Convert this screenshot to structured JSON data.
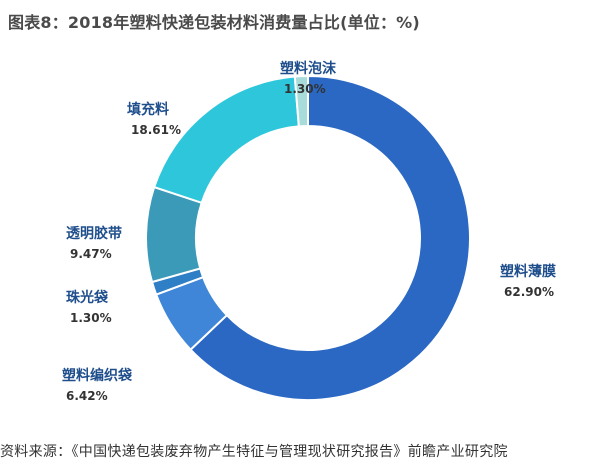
{
  "header": {
    "title": "图表8：2018年塑料快递包装材料消费量占比(单位：%)"
  },
  "footer": {
    "source": "资料来源：《中国快递包装废弃物产生特征与管理现状研究报告》前瞻产业研究院"
  },
  "chart_data": {
    "type": "pie",
    "donut": true,
    "title": "图表8：2018年塑料快递包装材料消费量占比(单位：%)",
    "categories": [
      "塑料薄膜",
      "塑料编织袋",
      "珠光袋",
      "透明胶带",
      "填充料",
      "塑料泡沫"
    ],
    "values": [
      62.9,
      6.42,
      1.3,
      9.47,
      18.61,
      1.3
    ],
    "value_labels": [
      "62.90%",
      "6.42%",
      "1.30%",
      "9.47%",
      "18.61%",
      "1.30%"
    ],
    "colors": [
      "#2a68c4",
      "#3f86d8",
      "#2f7fc6",
      "#3a9ab8",
      "#2ec6db",
      "#a8dcda"
    ],
    "legend": "none"
  }
}
